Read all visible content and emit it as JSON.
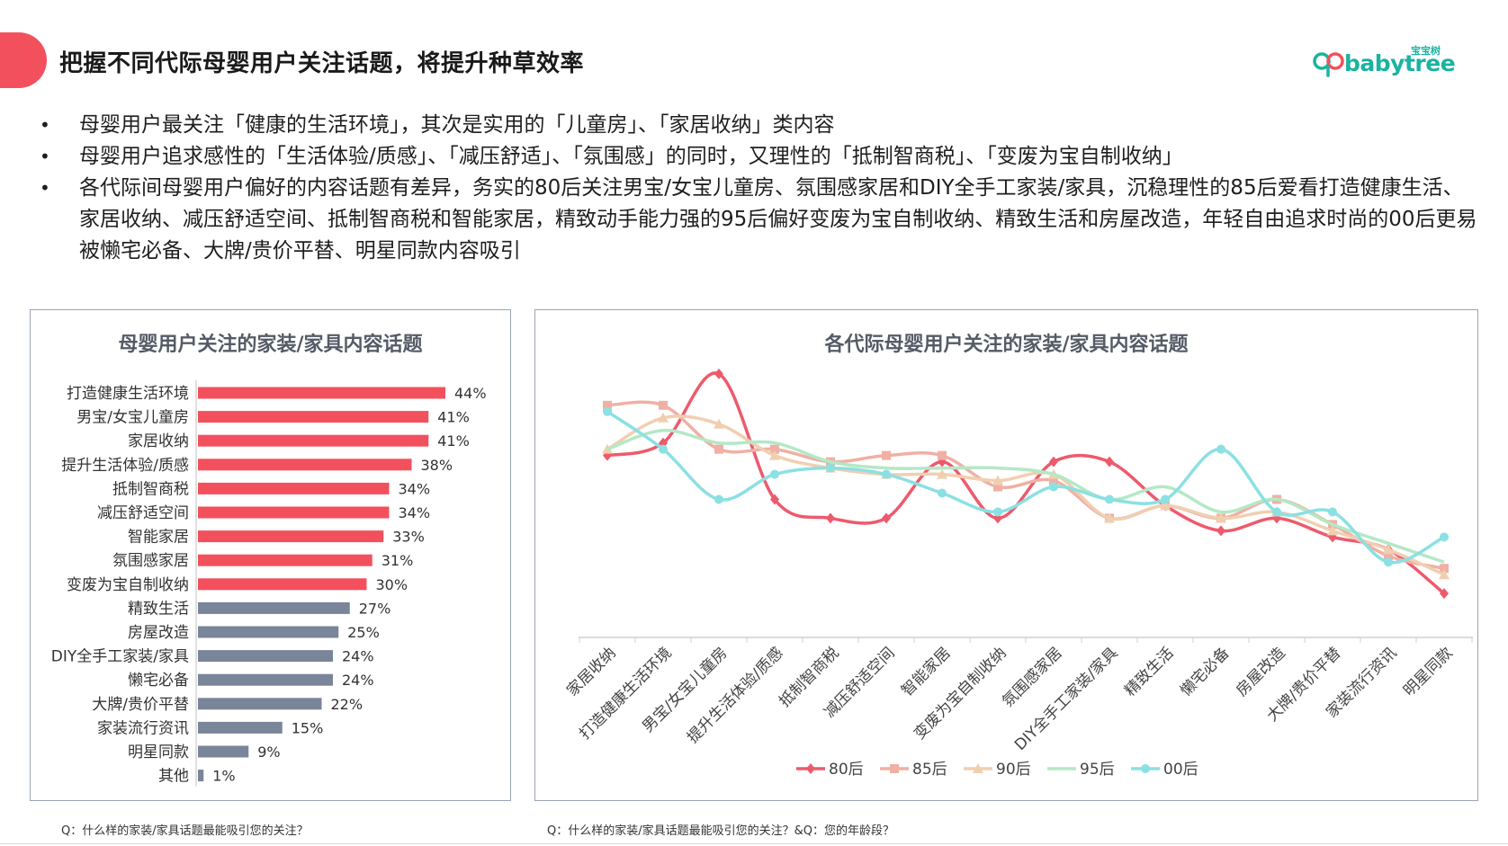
{
  "header": {
    "title": "把握不同代际母婴用户关注话题，将提升种草效率",
    "logo_cn": "宝宝树",
    "logo_text": "babytree"
  },
  "bullets": [
    "母婴用户最关注「健康的生活环境」，其次是实用的「儿童房」、「家居收纳」类内容",
    "母婴用户追求感性的「生活体验/质感」、「减压舒适」、「氛围感」的同时，又理性的「抵制智商税」、「变废为宝自制收纳」",
    "各代际间母婴用户偏好的内容话题有差异，务实的80后关注男宝/女宝儿童房、氛围感家居和DIY全手工家装/家具，沉稳理性的85后爱看打造健康生活、家居收纳、减压舒适空间、抵制智商税和智能家居，精致动手能力强的95后偏好变废为宝自制收纳、精致生活和房屋改造，年轻自由追求时尚的00后更易被懒宅必备、大牌/贵价平替、明星同款内容吸引"
  ],
  "bullet_marker": "•",
  "footnotes": {
    "left": "Q：什么样的家装/家具话题最能吸引您的关注？",
    "right": "Q：什么样的家装/家具话题最能吸引您的关注？&Q：您的年龄段？"
  },
  "colors": {
    "accent": "#f3505e",
    "bar_highlight": "#f3505e",
    "bar_normal": "#7a8599",
    "logo": "#1ab3a1"
  },
  "chart_data": [
    {
      "type": "bar",
      "orientation": "horizontal",
      "title": "母婴用户关注的家装/家具内容话题",
      "categories": [
        "打造健康生活环境",
        "男宝/女宝儿童房",
        "家居收纳",
        "提升生活体验/质感",
        "抵制智商税",
        "减压舒适空间",
        "智能家居",
        "氛围感家居",
        "变废为宝自制收纳",
        "精致生活",
        "房屋改造",
        "DIY全手工家装/家具",
        "懒宅必备",
        "大牌/贵价平替",
        "家装流行资讯",
        "明星同款",
        "其他"
      ],
      "values": [
        44,
        41,
        41,
        38,
        34,
        34,
        33,
        31,
        30,
        27,
        25,
        24,
        24,
        22,
        15,
        9,
        1
      ],
      "value_labels": [
        "44%",
        "41%",
        "41%",
        "38%",
        "34%",
        "34%",
        "33%",
        "31%",
        "30%",
        "27%",
        "25%",
        "24%",
        "24%",
        "22%",
        "15%",
        "9%",
        "1%"
      ],
      "highlight_count": 9,
      "xlim": [
        0,
        46
      ]
    },
    {
      "type": "line",
      "title": "各代际母婴用户关注的家装/家具内容话题",
      "categories": [
        "家居收纳",
        "打造健康生活环境",
        "男宝/女宝儿童房",
        "提升生活体验/质感",
        "抵制智商税",
        "减压舒适空间",
        "智能家居",
        "变废为宝自制收纳",
        "氛围感家居",
        "DIY全手工家装/家具",
        "精致生活",
        "懒宅必备",
        "房屋改造",
        "大牌/贵价平替",
        "家装流行资讯",
        "明星同款"
      ],
      "series": [
        {
          "name": "80后",
          "color": "#ee5a6c",
          "marker": "diamond",
          "values": [
            39,
            41,
            52,
            32,
            29,
            29,
            38,
            29,
            38,
            38,
            31,
            27,
            29,
            26,
            24,
            17
          ]
        },
        {
          "name": "85后",
          "color": "#f0b0a4",
          "marker": "square",
          "values": [
            47,
            47,
            40,
            40,
            38,
            39,
            39,
            34,
            35,
            29,
            31,
            29,
            32,
            28,
            23,
            21
          ]
        },
        {
          "name": "90后",
          "color": "#f0cfb1",
          "marker": "triangle",
          "values": [
            40,
            45,
            44,
            39,
            37,
            36,
            36,
            35,
            36,
            29,
            31,
            29,
            30,
            27,
            24,
            20
          ]
        },
        {
          "name": "95后",
          "color": "#b4e8c5",
          "marker": "none",
          "values": [
            40,
            43,
            41,
            41,
            38,
            37,
            37,
            37,
            36,
            32,
            34,
            30,
            32,
            28,
            25,
            22
          ]
        },
        {
          "name": "00后",
          "color": "#8be0e3",
          "marker": "circle",
          "values": [
            46,
            40,
            32,
            36,
            37,
            36,
            33,
            30,
            34,
            32,
            32,
            40,
            30,
            30,
            22,
            26
          ]
        }
      ],
      "ylim": [
        10,
        55
      ],
      "legend_position": "bottom"
    }
  ]
}
